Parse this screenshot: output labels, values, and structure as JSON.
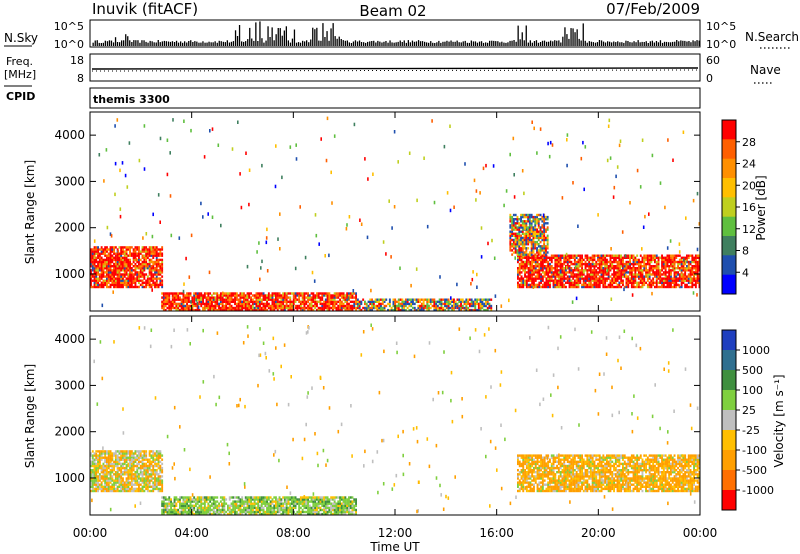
{
  "header": {
    "station": "Inuvik (fitACF)",
    "beam": "Beam 02",
    "date": "07/Feb/2009"
  },
  "noise_panel": {
    "left_label": "N.Sky",
    "right_label": "N.Search",
    "left_ticks": [
      "10^5",
      "10^0"
    ],
    "right_ticks": [
      "10^5",
      "10^0"
    ]
  },
  "freq_panel": {
    "left_label": "Freq.",
    "left_units": "[MHz]",
    "right_label": "Nave",
    "left_ticks": [
      "18",
      "8"
    ],
    "right_ticks": [
      "60",
      "0"
    ]
  },
  "cpid": {
    "label": "CPID",
    "value": "themis 3300"
  },
  "colors": {
    "power": [
      "#0000ff",
      "#1f4fae",
      "#3f7f5f",
      "#5fbf3f",
      "#bfcf1f",
      "#ffbf00",
      "#ff8f00",
      "#ff5f00",
      "#ff0000"
    ],
    "velocity": [
      "#1f3fbf",
      "#2f6f8f",
      "#3f8f3f",
      "#7fcf3f",
      "#bfbfbf",
      "#ffbf00",
      "#ff9f00",
      "#ff6f00",
      "#ff0000"
    ]
  },
  "chart_data": [
    {
      "type": "heatmap",
      "title": "Power",
      "xlabel": "",
      "ylabel": "Slant Range [km]",
      "x_ticks": [
        "00:00",
        "04:00",
        "08:00",
        "12:00",
        "16:00",
        "20:00",
        "00:00"
      ],
      "y_ticks": [
        "1000",
        "2000",
        "3000",
        "4000"
      ],
      "ylim": [
        200,
        4500
      ],
      "colorbar_label": "Power [dB]",
      "colorbar_ticks": [
        "4",
        "8",
        "12",
        "16",
        "20",
        "24",
        "28"
      ],
      "regions": [
        {
          "t0": 0.0,
          "t1": 2.8,
          "r0": 700,
          "r1": 1600,
          "level": "high"
        },
        {
          "t0": 2.8,
          "t1": 10.5,
          "r0": 200,
          "r1": 600,
          "level": "high"
        },
        {
          "t0": 10.5,
          "t1": 15.8,
          "r0": 200,
          "r1": 450,
          "level": "mid"
        },
        {
          "t0": 16.8,
          "t1": 24.0,
          "r0": 700,
          "r1": 1400,
          "level": "high"
        },
        {
          "t0": 16.5,
          "t1": 18.0,
          "r0": 1400,
          "r1": 2300,
          "level": "mid"
        }
      ]
    },
    {
      "type": "heatmap",
      "title": "Velocity",
      "xlabel": "Time UT",
      "ylabel": "Slant Range [km]",
      "x_ticks": [
        "00:00",
        "04:00",
        "08:00",
        "12:00",
        "16:00",
        "20:00",
        "00:00"
      ],
      "y_ticks": [
        "1000",
        "2000",
        "3000",
        "4000"
      ],
      "ylim": [
        200,
        4500
      ],
      "colorbar_label": "Velocity [m s⁻¹]",
      "colorbar_ticks": [
        "1000",
        "500",
        "100",
        "25",
        "-25",
        "-100",
        "-500",
        "-1000"
      ],
      "regions": [
        {
          "t0": 0.0,
          "t1": 2.8,
          "r0": 700,
          "r1": 1600,
          "level": "mixed"
        },
        {
          "t0": 2.8,
          "t1": 10.5,
          "r0": 200,
          "r1": 600,
          "level": "green"
        },
        {
          "t0": 16.8,
          "t1": 24.0,
          "r0": 700,
          "r1": 1500,
          "level": "orange"
        }
      ]
    }
  ]
}
